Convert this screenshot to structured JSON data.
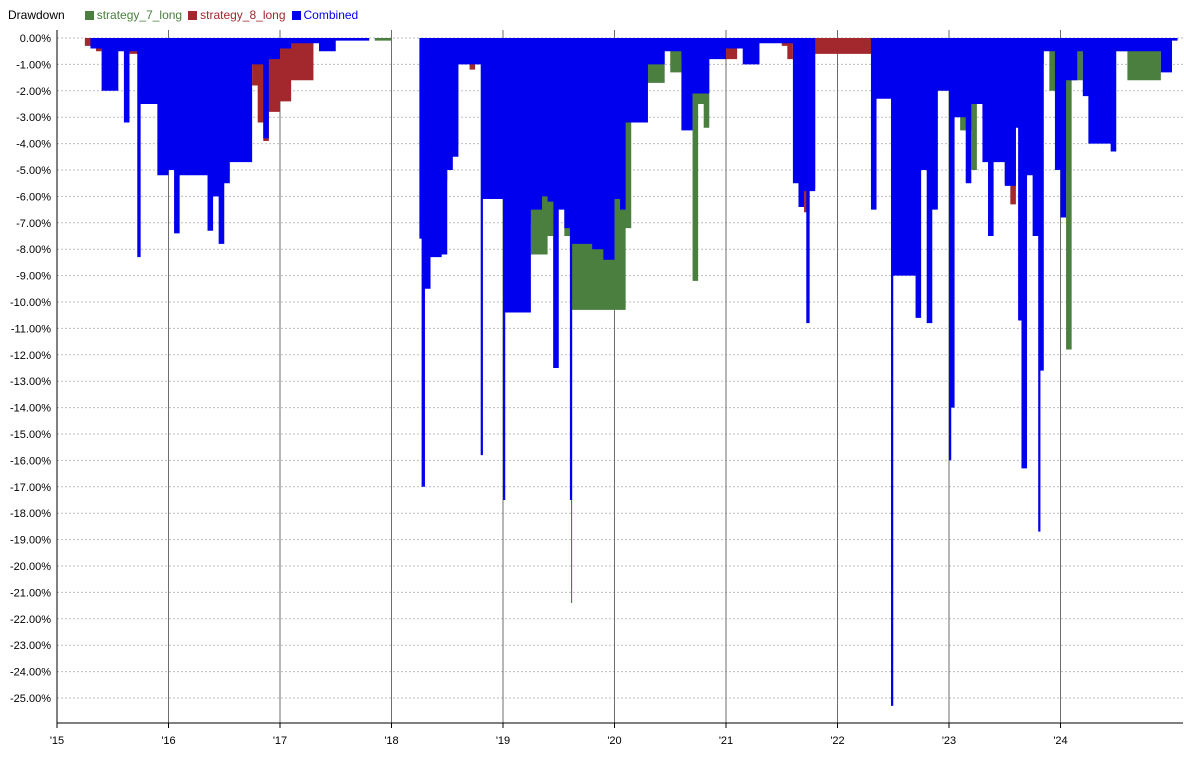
{
  "chart_data": {
    "type": "area",
    "title": "Drawdown",
    "xlabel": "",
    "ylabel": "",
    "x_ticks": [
      "'15",
      "'16",
      "'17",
      "'18",
      "'19",
      "'20",
      "'21",
      "'22",
      "'23",
      "'24"
    ],
    "xlim": [
      2015.0,
      2025.1
    ],
    "ylim": [
      -26.0,
      0.5
    ],
    "y_ticks": [
      0,
      -1,
      -2,
      -3,
      -4,
      -5,
      -6,
      -7,
      -8,
      -9,
      -10,
      -11,
      -12,
      -13,
      -14,
      -15,
      -16,
      -17,
      -18,
      -19,
      -20,
      -21,
      -22,
      -23,
      -24,
      -25
    ],
    "y_tick_labels": [
      "0.00%",
      "-1.00%",
      "-2.00%",
      "-3.00%",
      "-4.00%",
      "-5.00%",
      "-6.00%",
      "-7.00%",
      "-8.00%",
      "-9.00%",
      "-10.00%",
      "-11.00%",
      "-12.00%",
      "-13.00%",
      "-14.00%",
      "-15.00%",
      "-16.00%",
      "-17.00%",
      "-18.00%",
      "-19.00%",
      "-20.00%",
      "-21.00%",
      "-22.00%",
      "-23.00%",
      "-24.00%",
      "-25.00%"
    ],
    "grid": true,
    "legend": "top-left",
    "series": [
      {
        "name": "strategy_7_long",
        "color": "#4a7f3f",
        "points": [
          [
            2015.45,
            -0.4
          ],
          [
            2015.5,
            -0.2
          ],
          [
            2015.52,
            0
          ],
          [
            2015.6,
            -0.3
          ],
          [
            2016.0,
            0
          ],
          [
            2017.85,
            -0.1
          ],
          [
            2018.0,
            0
          ],
          [
            2018.4,
            -5.4
          ],
          [
            2018.5,
            -4.5
          ],
          [
            2018.55,
            -4.0
          ],
          [
            2018.6,
            0
          ],
          [
            2018.65,
            -0.8
          ],
          [
            2019.2,
            -7.0
          ],
          [
            2019.25,
            -8.2
          ],
          [
            2019.4,
            -7.5
          ],
          [
            2019.45,
            -3.2
          ],
          [
            2019.55,
            -7.5
          ],
          [
            2019.6,
            -8.0
          ],
          [
            2019.61,
            -21.4
          ],
          [
            2019.62,
            -10.3
          ],
          [
            2020.05,
            -10.3
          ],
          [
            2020.1,
            -7.2
          ],
          [
            2020.15,
            -1.7
          ],
          [
            2020.4,
            -1.7
          ],
          [
            2020.45,
            -0.2
          ],
          [
            2020.5,
            -1.3
          ],
          [
            2020.6,
            -0.8
          ],
          [
            2020.7,
            -9.2
          ],
          [
            2020.75,
            -2.5
          ],
          [
            2020.8,
            -3.4
          ],
          [
            2020.85,
            0
          ],
          [
            2023.1,
            -3.5
          ],
          [
            2023.2,
            -5.0
          ],
          [
            2023.25,
            0
          ],
          [
            2023.8,
            -1.0
          ],
          [
            2023.85,
            -0.3
          ],
          [
            2023.9,
            -2.0
          ],
          [
            2024.0,
            -5.0
          ],
          [
            2024.05,
            -11.8
          ],
          [
            2024.1,
            -1.6
          ],
          [
            2024.2,
            -0.5
          ],
          [
            2024.5,
            -0.5
          ],
          [
            2024.6,
            -1.6
          ],
          [
            2024.85,
            -1.6
          ],
          [
            2024.9,
            0
          ]
        ]
      },
      {
        "name": "strategy_8_long",
        "color": "#a3282e",
        "points": [
          [
            2015.25,
            -0.3
          ],
          [
            2015.35,
            -0.5
          ],
          [
            2015.4,
            0
          ],
          [
            2015.65,
            -0.6
          ],
          [
            2015.8,
            0
          ],
          [
            2015.9,
            -0.9
          ],
          [
            2016.0,
            0
          ],
          [
            2016.75,
            -1.8
          ],
          [
            2016.8,
            -3.2
          ],
          [
            2016.85,
            -3.9
          ],
          [
            2016.9,
            -2.8
          ],
          [
            2017.0,
            -2.4
          ],
          [
            2017.1,
            -1.6
          ],
          [
            2017.2,
            -1.6
          ],
          [
            2017.3,
            0
          ],
          [
            2018.7,
            -1.2
          ],
          [
            2018.75,
            0
          ],
          [
            2021.0,
            -0.8
          ],
          [
            2021.1,
            0
          ],
          [
            2021.5,
            -0.3
          ],
          [
            2021.55,
            -0.8
          ],
          [
            2021.6,
            0
          ],
          [
            2021.65,
            -4.8
          ],
          [
            2021.7,
            -6.6
          ],
          [
            2021.75,
            -5.7
          ],
          [
            2021.8,
            -0.6
          ],
          [
            2022.3,
            -0.6
          ],
          [
            2022.35,
            0
          ],
          [
            2022.7,
            -0.7
          ],
          [
            2022.8,
            0
          ],
          [
            2023.3,
            -3.0
          ],
          [
            2023.4,
            -3.8
          ],
          [
            2023.45,
            -4.3
          ],
          [
            2023.5,
            -5.5
          ],
          [
            2023.55,
            -6.3
          ],
          [
            2023.6,
            -3.1
          ],
          [
            2023.65,
            -2.8
          ],
          [
            2023.7,
            -1.8
          ],
          [
            2023.75,
            0
          ]
        ]
      },
      {
        "name": "Combined",
        "color": "#0000ee",
        "points": [
          [
            2015.3,
            -0.4
          ],
          [
            2015.4,
            -2.0
          ],
          [
            2015.55,
            -0.5
          ],
          [
            2015.6,
            -3.2
          ],
          [
            2015.65,
            -0.5
          ],
          [
            2015.72,
            -8.3
          ],
          [
            2015.75,
            -2.5
          ],
          [
            2015.9,
            -5.2
          ],
          [
            2016.0,
            -5.0
          ],
          [
            2016.05,
            -7.4
          ],
          [
            2016.1,
            -5.2
          ],
          [
            2016.3,
            -5.2
          ],
          [
            2016.35,
            -7.3
          ],
          [
            2016.4,
            -6.0
          ],
          [
            2016.45,
            -7.8
          ],
          [
            2016.5,
            -5.5
          ],
          [
            2016.55,
            -4.7
          ],
          [
            2016.7,
            -4.7
          ],
          [
            2016.75,
            -1.0
          ],
          [
            2016.85,
            -3.8
          ],
          [
            2016.9,
            -0.8
          ],
          [
            2017.0,
            -0.4
          ],
          [
            2017.1,
            -0.2
          ],
          [
            2017.35,
            -0.5
          ],
          [
            2017.5,
            -0.1
          ],
          [
            2017.8,
            0
          ],
          [
            2018.25,
            -7.6
          ],
          [
            2018.27,
            -17.0
          ],
          [
            2018.3,
            -9.5
          ],
          [
            2018.35,
            -8.3
          ],
          [
            2018.45,
            -8.2
          ],
          [
            2018.5,
            -5.0
          ],
          [
            2018.55,
            -4.5
          ],
          [
            2018.6,
            -1.0
          ],
          [
            2018.7,
            -1.0
          ],
          [
            2018.8,
            -15.8
          ],
          [
            2018.82,
            -6.1
          ],
          [
            2018.95,
            -6.1
          ],
          [
            2019.0,
            -17.5
          ],
          [
            2019.02,
            -10.4
          ],
          [
            2019.2,
            -10.4
          ],
          [
            2019.25,
            -6.5
          ],
          [
            2019.35,
            -6.0
          ],
          [
            2019.4,
            -6.2
          ],
          [
            2019.45,
            -12.5
          ],
          [
            2019.5,
            -6.5
          ],
          [
            2019.55,
            -7.2
          ],
          [
            2019.6,
            -17.5
          ],
          [
            2019.62,
            -7.8
          ],
          [
            2019.8,
            -8.0
          ],
          [
            2019.9,
            -8.4
          ],
          [
            2020.0,
            -6.1
          ],
          [
            2020.05,
            -6.5
          ],
          [
            2020.1,
            -3.2
          ],
          [
            2020.3,
            -1.0
          ],
          [
            2020.45,
            -0.5
          ],
          [
            2020.6,
            -3.5
          ],
          [
            2020.7,
            -2.1
          ],
          [
            2020.85,
            -0.8
          ],
          [
            2021.0,
            -0.4
          ],
          [
            2021.15,
            -1.0
          ],
          [
            2021.3,
            -0.2
          ],
          [
            2021.6,
            -5.5
          ],
          [
            2021.65,
            -6.4
          ],
          [
            2021.7,
            -5.8
          ],
          [
            2021.72,
            -10.8
          ],
          [
            2021.75,
            -5.8
          ],
          [
            2021.8,
            0
          ],
          [
            2022.3,
            -6.5
          ],
          [
            2022.35,
            -2.3
          ],
          [
            2022.45,
            -2.3
          ],
          [
            2022.48,
            -25.3
          ],
          [
            2022.5,
            -9.0
          ],
          [
            2022.65,
            -9.0
          ],
          [
            2022.7,
            -10.6
          ],
          [
            2022.75,
            -5.0
          ],
          [
            2022.8,
            -10.8
          ],
          [
            2022.85,
            -6.5
          ],
          [
            2022.9,
            -2.0
          ],
          [
            2023.0,
            -16.0
          ],
          [
            2023.02,
            -14.0
          ],
          [
            2023.05,
            -3.0
          ],
          [
            2023.15,
            -5.5
          ],
          [
            2023.2,
            -2.5
          ],
          [
            2023.3,
            -4.7
          ],
          [
            2023.35,
            -7.5
          ],
          [
            2023.4,
            -4.7
          ],
          [
            2023.5,
            -5.6
          ],
          [
            2023.6,
            -3.4
          ],
          [
            2023.62,
            -10.7
          ],
          [
            2023.65,
            -16.3
          ],
          [
            2023.7,
            -5.2
          ],
          [
            2023.75,
            -7.5
          ],
          [
            2023.8,
            -18.7
          ],
          [
            2023.82,
            -12.6
          ],
          [
            2023.85,
            -0.5
          ],
          [
            2023.95,
            -5.0
          ],
          [
            2024.0,
            -6.8
          ],
          [
            2024.05,
            -1.6
          ],
          [
            2024.15,
            -0.5
          ],
          [
            2024.2,
            -2.2
          ],
          [
            2024.25,
            -4.0
          ],
          [
            2024.45,
            -4.3
          ],
          [
            2024.5,
            -0.5
          ],
          [
            2024.9,
            -1.3
          ],
          [
            2025.0,
            -0.1
          ],
          [
            2025.05,
            0
          ]
        ]
      }
    ]
  }
}
